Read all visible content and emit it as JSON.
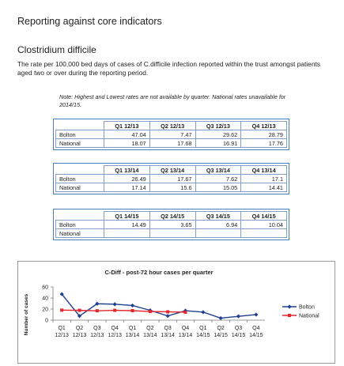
{
  "heading": "Reporting against core indicators",
  "subheading": "Clostridium difficile",
  "description": "The rate per 100,000 bed days of cases of C.difficile infection reported within the trust amongst patients aged two or over during the reporting period.",
  "note": "Note:  Highest and Lowest rates are not available by quarter.  National rates unavailable for 2014/15.",
  "tables": [
    {
      "headers": [
        "Q1 12/13",
        "Q2 12/13",
        "Q3 12/13",
        "Q4 12/13"
      ],
      "rows": [
        {
          "label": "Bolton",
          "values": [
            "47.04",
            "7.47",
            "29.62",
            "28.79"
          ]
        },
        {
          "label": "National",
          "values": [
            "18.07",
            "17.68",
            "16.91",
            "17.76"
          ]
        }
      ]
    },
    {
      "headers": [
        "Q1 13/14",
        "Q2 13/14",
        "Q3 13/14",
        "Q4 13/14"
      ],
      "rows": [
        {
          "label": "Bolton",
          "values": [
            "26.49",
            "17.67",
            "7.62",
            "17.1"
          ]
        },
        {
          "label": "National",
          "values": [
            "17.14",
            "15.6",
            "15.05",
            "14.41"
          ]
        }
      ]
    },
    {
      "headers": [
        "Q1 14/15",
        "Q2 14/15",
        "Q3 14/15",
        "Q4 14/15"
      ],
      "rows": [
        {
          "label": "Bolton",
          "values": [
            "14.49",
            "3.65",
            "6.94",
            "10.04"
          ]
        },
        {
          "label": "National",
          "values": [
            "",
            "",
            "",
            ""
          ]
        }
      ]
    }
  ],
  "chart_data": {
    "type": "line",
    "title": "C-Diff - post-72 hour cases per quarter",
    "ylabel": "Number of cases",
    "xlabel": "",
    "ylim": [
      0,
      60
    ],
    "yticks": [
      0,
      20,
      40,
      60
    ],
    "grid": false,
    "legend": "right",
    "categories": [
      {
        "q": "Q1",
        "y": "12/13"
      },
      {
        "q": "Q2",
        "y": "12/13"
      },
      {
        "q": "Q3",
        "y": "12/13"
      },
      {
        "q": "Q4",
        "y": "12/13"
      },
      {
        "q": "Q1",
        "y": "13/14"
      },
      {
        "q": "Q2",
        "y": "13/14"
      },
      {
        "q": "Q3",
        "y": "13/14"
      },
      {
        "q": "Q4",
        "y": "13/14"
      },
      {
        "q": "Q1",
        "y": "14/15"
      },
      {
        "q": "Q2",
        "y": "14/15"
      },
      {
        "q": "Q3",
        "y": "14/15"
      },
      {
        "q": "Q4",
        "y": "14/15"
      }
    ],
    "series": [
      {
        "name": "Bolton",
        "color": "#1f3f8f",
        "marker": "diamond",
        "values": [
          47.04,
          7.47,
          29.62,
          28.79,
          26.49,
          17.67,
          7.62,
          17.1,
          14.49,
          3.65,
          6.94,
          10.04
        ]
      },
      {
        "name": "National",
        "color": "#e3262b",
        "marker": "square",
        "values": [
          18.07,
          17.68,
          16.91,
          17.76,
          17.14,
          15.6,
          15.05,
          14.41,
          null,
          null,
          null,
          null
        ]
      }
    ]
  }
}
